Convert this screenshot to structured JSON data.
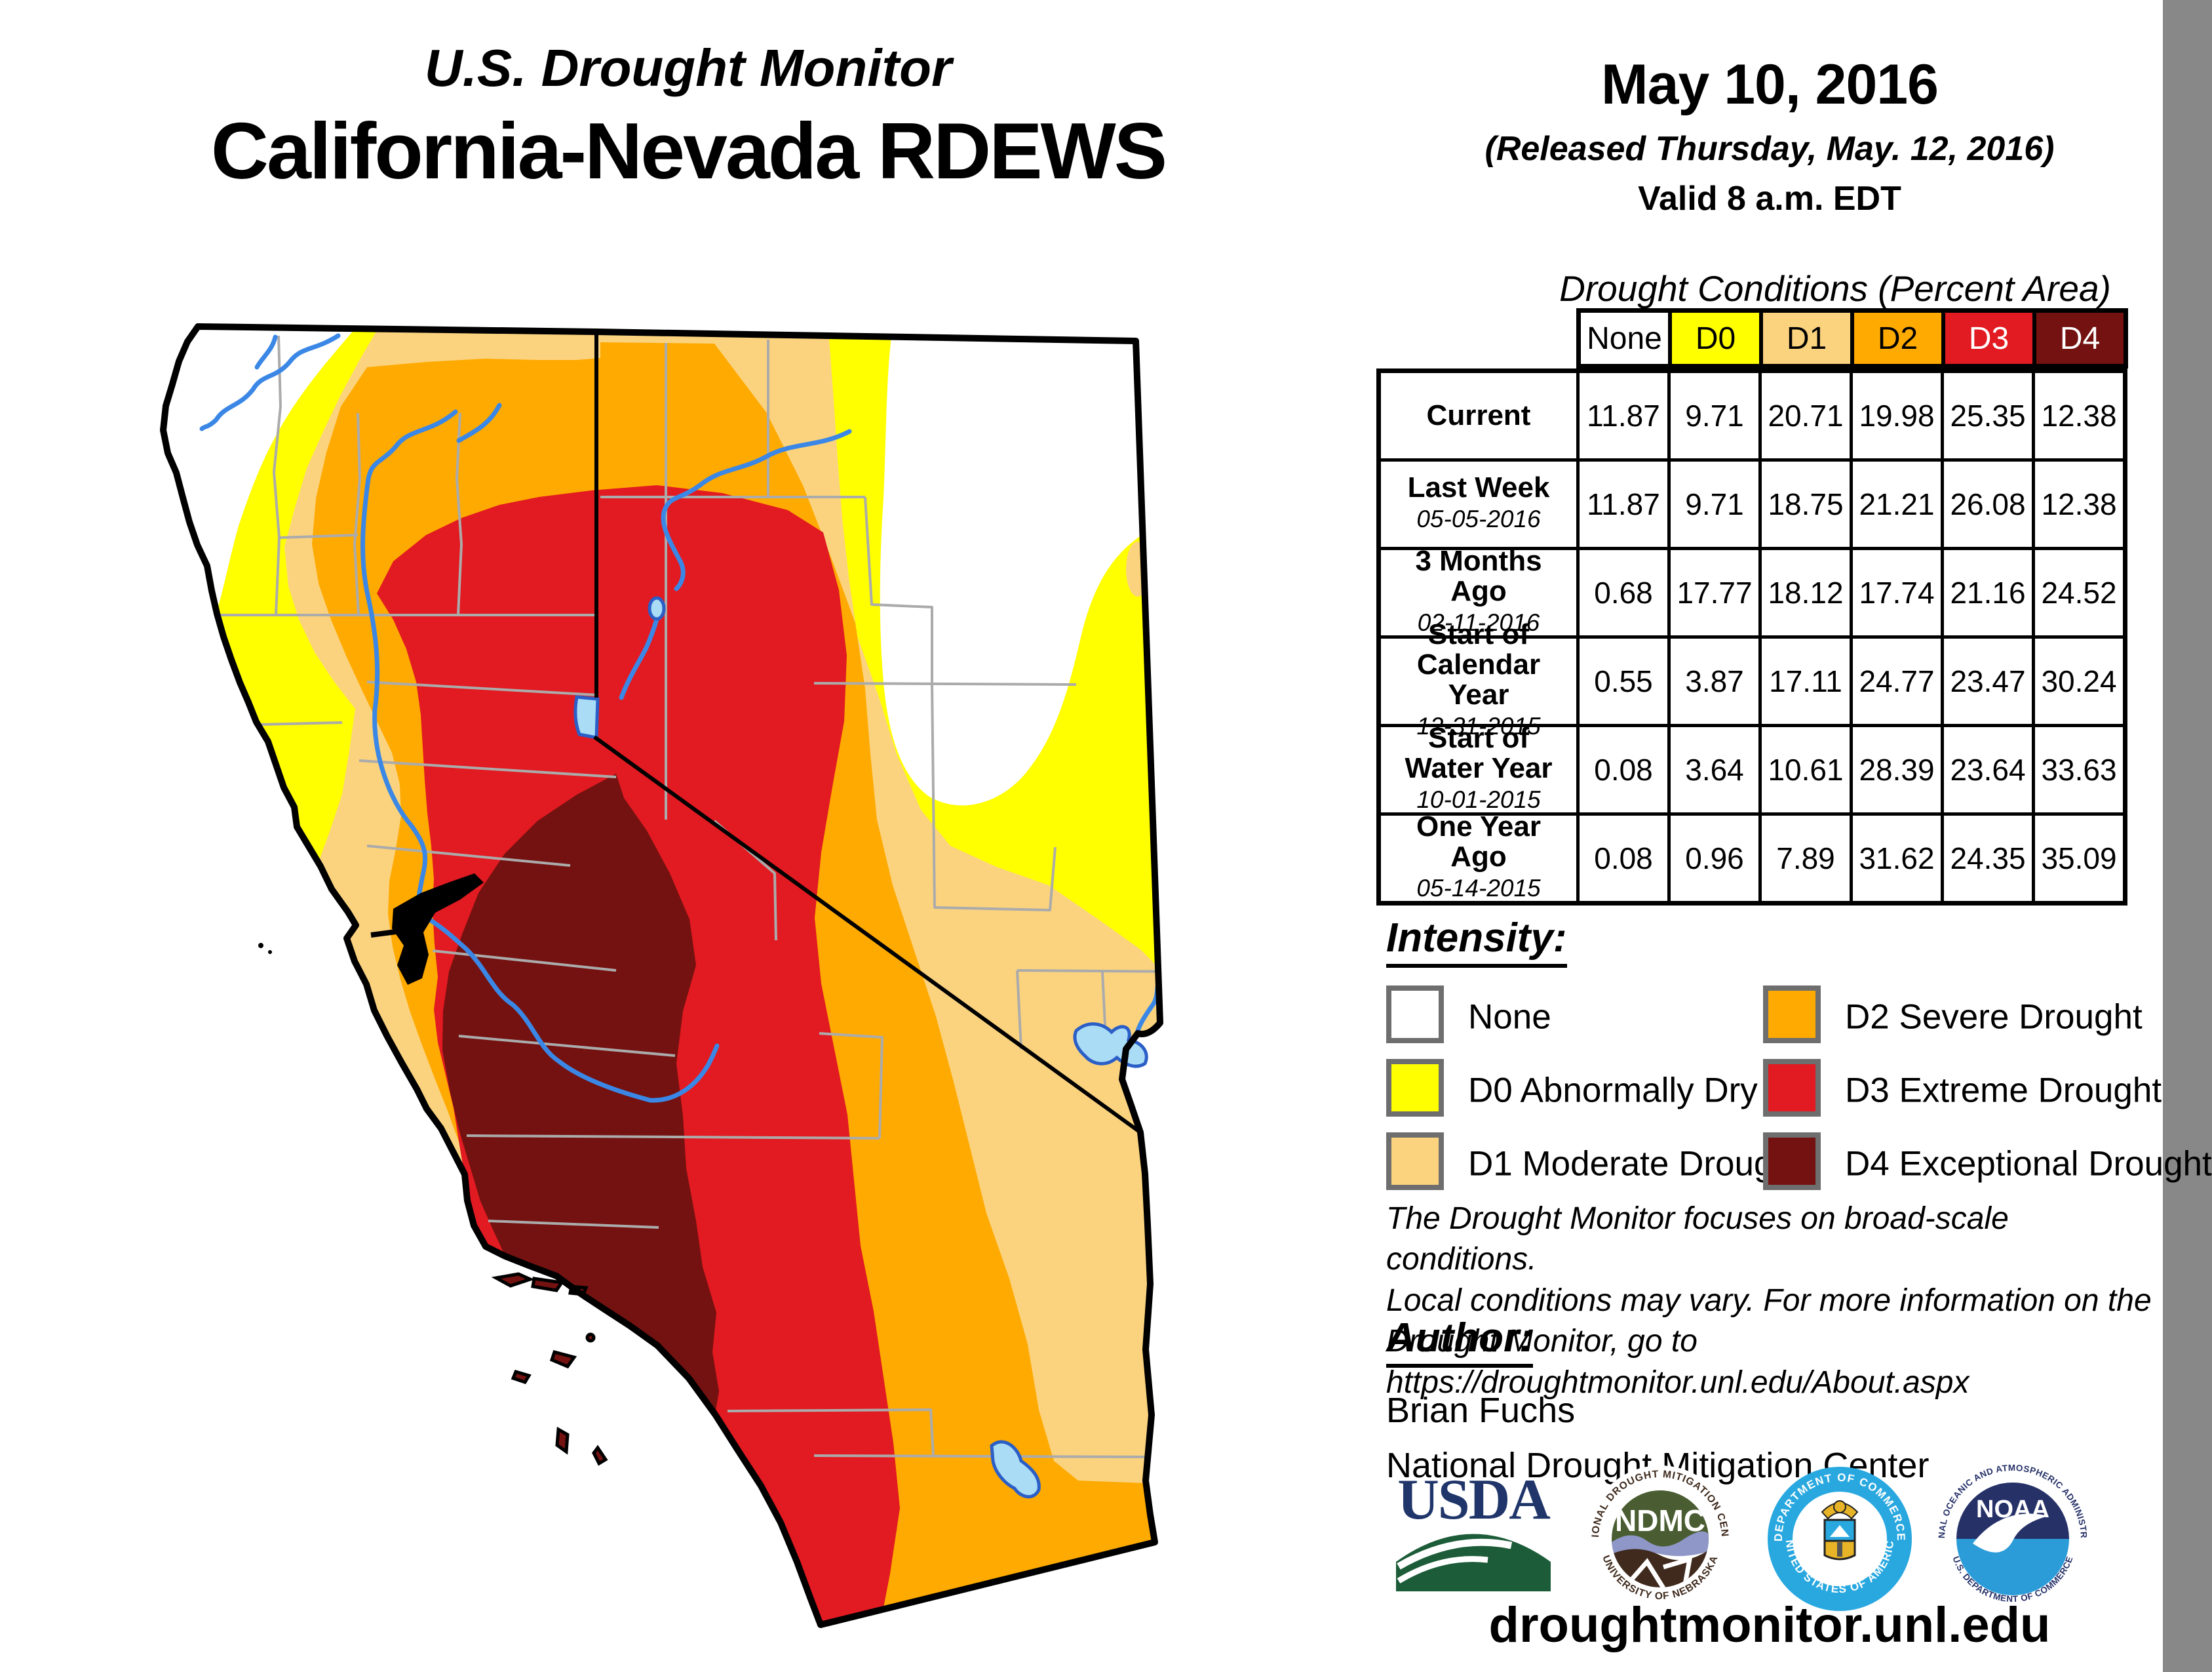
{
  "header": {
    "kicker": "U.S. Drought Monitor",
    "title": "California-Nevada RDEWS"
  },
  "date_block": {
    "date": "May 10, 2016",
    "released": "(Released Thursday, May. 12, 2016)",
    "valid": "Valid 8 a.m. EDT"
  },
  "table": {
    "title": "Drought Conditions (Percent Area)",
    "columns": [
      {
        "label": "None",
        "color": "#ffffff",
        "text": "#000000"
      },
      {
        "label": "D0",
        "color": "#ffff00",
        "text": "#000000"
      },
      {
        "label": "D1",
        "color": "#fbd37f",
        "text": "#000000"
      },
      {
        "label": "D2",
        "color": "#ffaa00",
        "text": "#000000"
      },
      {
        "label": "D3",
        "color": "#e21a21",
        "text": "#ffffff"
      },
      {
        "label": "D4",
        "color": "#731210",
        "text": "#ffffff"
      }
    ],
    "rows": [
      {
        "label": "Current",
        "sublabel": "",
        "values": [
          "11.87",
          "9.71",
          "20.71",
          "19.98",
          "25.35",
          "12.38"
        ]
      },
      {
        "label": "Last Week",
        "sublabel": "05-05-2016",
        "values": [
          "11.87",
          "9.71",
          "18.75",
          "21.21",
          "26.08",
          "12.38"
        ]
      },
      {
        "label": "3 Months Ago",
        "sublabel": "02-11-2016",
        "values": [
          "0.68",
          "17.77",
          "18.12",
          "17.74",
          "21.16",
          "24.52"
        ]
      },
      {
        "label": "Start of Calendar Year",
        "sublabel": "12-31-2015",
        "values": [
          "0.55",
          "3.87",
          "17.11",
          "24.77",
          "23.47",
          "30.24"
        ]
      },
      {
        "label": "Start of Water Year",
        "sublabel": "10-01-2015",
        "values": [
          "0.08",
          "3.64",
          "10.61",
          "28.39",
          "23.64",
          "33.63"
        ]
      },
      {
        "label": "One Year Ago",
        "sublabel": "05-14-2015",
        "values": [
          "0.08",
          "0.96",
          "7.89",
          "31.62",
          "24.35",
          "35.09"
        ]
      }
    ]
  },
  "legend": {
    "heading": "Intensity:",
    "items": [
      {
        "label": "None",
        "color": "#ffffff"
      },
      {
        "label": "D0 Abnormally Dry",
        "color": "#ffff00"
      },
      {
        "label": "D1 Moderate Drought",
        "color": "#fbd37f"
      },
      {
        "label": "D2 Severe Drought",
        "color": "#ffaa00"
      },
      {
        "label": "D3 Extreme Drought",
        "color": "#e21a21"
      },
      {
        "label": "D4 Exceptional Drought",
        "color": "#731210"
      }
    ]
  },
  "disclaimer": {
    "line1": "The Drought Monitor focuses on broad-scale conditions.",
    "line2": "Local conditions may vary. For more information on the",
    "line3": "Drought Monitor, go to https://droughtmonitor.unl.edu/About.aspx"
  },
  "author": {
    "heading": "Author:",
    "name": "Brian Fuchs",
    "org": "National Drought Mitigation Center"
  },
  "logos": {
    "usda": "USDA",
    "ndmc": "NDMC",
    "ndmc_ring_top": "NATIONAL DROUGHT MITIGATION CENTER",
    "ndmc_ring_bottom": "UNIVERSITY OF NEBRASKA",
    "doc_ring_top": "DEPARTMENT OF COMMERCE",
    "doc_ring_bottom": "UNITED STATES OF AMERICA",
    "noaa": "NOAA",
    "noaa_ring_top": "NATIONAL OCEANIC AND ATMOSPHERIC ADMINISTRATION",
    "noaa_ring_bottom": "U.S. DEPARTMENT OF COMMERCE"
  },
  "footer": {
    "url": "droughtmonitor.unl.edu"
  },
  "map": {
    "region": "California-Nevada",
    "features": [
      "Lake Tahoe",
      "Salton Sea",
      "Lake Mead",
      "SF Bay",
      "Channel Islands"
    ],
    "palette": {
      "none": "#ffffff",
      "d0": "#ffff00",
      "d1": "#fbd37f",
      "d2": "#ffaa00",
      "d3": "#e21a21",
      "d4": "#731210",
      "river": "#3b87e6",
      "lake": "#aadcf5",
      "county": "#ababab",
      "border": "#000000"
    }
  }
}
